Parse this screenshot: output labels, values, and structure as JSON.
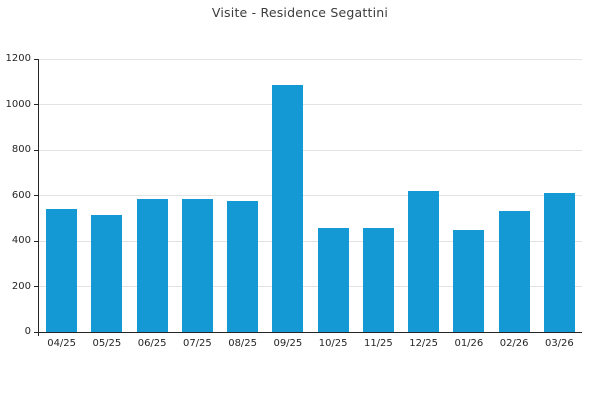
{
  "chart_data": {
    "type": "bar",
    "title": "Visite - Residence Segattini",
    "categories": [
      "04/25",
      "05/25",
      "06/25",
      "07/25",
      "08/25",
      "09/25",
      "10/25",
      "11/25",
      "12/25",
      "01/26",
      "02/26",
      "03/26"
    ],
    "values": [
      540,
      515,
      585,
      585,
      575,
      1085,
      455,
      455,
      620,
      450,
      530,
      610
    ],
    "xlabel": "",
    "ylabel": "",
    "ylim": [
      0,
      1200
    ],
    "yticks": [
      0,
      200,
      400,
      600,
      800,
      1000,
      1200
    ],
    "grid": "horizontal-only",
    "legend_position": "none",
    "colors": {
      "bar": "#1499d4",
      "axis": "#262626",
      "gridline": "#e3e3e3",
      "tick_label": "#262626",
      "title": "#3c3c3c",
      "background": "#ffffff"
    }
  }
}
